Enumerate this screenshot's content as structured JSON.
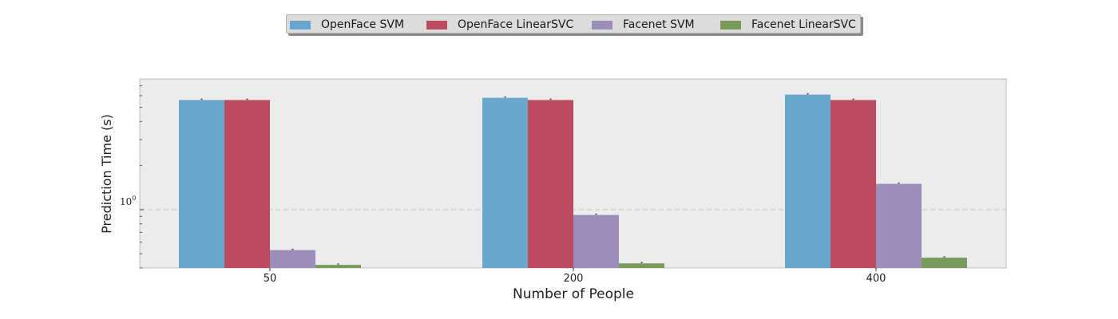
{
  "chart_data": {
    "type": "bar",
    "categories": [
      "50",
      "200",
      "400"
    ],
    "series": [
      {
        "name": "OpenFace SVM",
        "color": "#6aa7cc",
        "values": [
          5.6,
          5.8,
          6.1
        ]
      },
      {
        "name": "OpenFace LinearSVC",
        "color": "#bc4b62",
        "values": [
          5.6,
          5.6,
          5.6
        ]
      },
      {
        "name": "Facenet SVM",
        "color": "#9b8fb9",
        "values": [
          0.53,
          0.92,
          1.5
        ]
      },
      {
        "name": "Facenet LinearSVC",
        "color": "#789b5b",
        "values": [
          0.42,
          0.43,
          0.47
        ]
      }
    ],
    "xlabel": "Number of People",
    "ylabel": "Prediction Time (s)",
    "yscale": "log",
    "ylim": [
      0.4,
      7.8
    ],
    "ytick_label": {
      "base": "10",
      "exponent": "0"
    },
    "grid": "horizontal dashed",
    "legend_placement": "top-center"
  }
}
